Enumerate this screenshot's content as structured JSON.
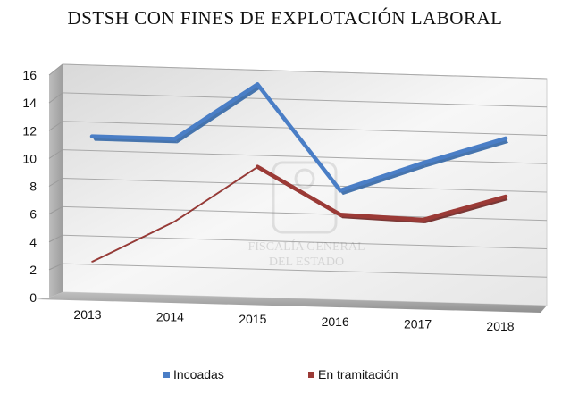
{
  "chart_data": {
    "type": "line",
    "title": "DSTSH CON FINES DE EXPLOTACIÓN LABORAL",
    "xlabel": "",
    "ylabel": "",
    "categories": [
      "2013",
      "2014",
      "2015",
      "2016",
      "2017",
      "2018"
    ],
    "ylim": [
      0,
      16
    ],
    "yticks": [
      0,
      2,
      4,
      6,
      8,
      10,
      12,
      14,
      16
    ],
    "grid": true,
    "legend": "bottom",
    "series": [
      {
        "name": "Incoadas",
        "color": "#4a7ec6",
        "values": [
          11,
          11,
          15,
          7.7,
          9.8,
          11.7
        ]
      },
      {
        "name": "En tramitación",
        "color": "#9b3a36",
        "values": [
          2.2,
          5.2,
          9.2,
          6.0,
          5.8,
          7.6
        ]
      }
    ],
    "watermark": {
      "line1": "FISCALÍA GENERAL",
      "line2": "DEL ESTADO"
    }
  }
}
